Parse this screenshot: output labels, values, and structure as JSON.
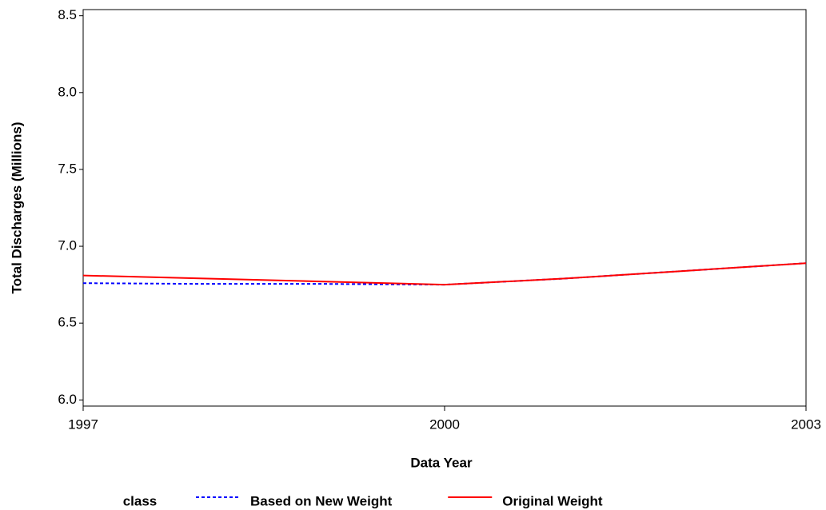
{
  "chart_data": {
    "type": "line",
    "x_label": "Data Year",
    "y_label": "Total Discharges (Millions)",
    "x": [
      1997,
      1998,
      1999,
      2000,
      2001,
      2002,
      2003
    ],
    "series": [
      {
        "name": "Based on New Weight",
        "color": "#0000ff",
        "dash": true,
        "values": [
          6.76,
          6.755,
          6.755,
          6.75,
          6.79,
          6.84,
          6.89
        ]
      },
      {
        "name": "Original Weight",
        "color": "#ff0000",
        "dash": false,
        "values": [
          6.81,
          6.79,
          6.77,
          6.75,
          6.79,
          6.84,
          6.89
        ]
      }
    ],
    "legend_title": "class",
    "xlim": [
      1997,
      2003
    ],
    "xticks": [
      1997,
      2000,
      2003
    ],
    "ylim": [
      5.96,
      8.54
    ],
    "yticks": [
      {
        "value": 6,
        "label": "6.0"
      },
      6.5,
      {
        "value": 7,
        "label": "7.0"
      },
      7.5,
      {
        "value": 8,
        "label": "8.0"
      },
      8.5
    ],
    "grid": false
  }
}
